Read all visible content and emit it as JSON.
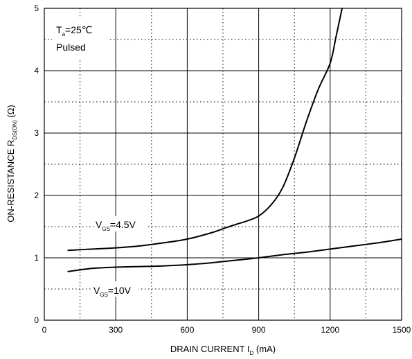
{
  "chart_data": {
    "type": "line",
    "xlabel": {
      "main": "DRAIN CURRENT I",
      "sub": "D",
      "unit": " (mA)"
    },
    "ylabel": {
      "main": "ON-RESISTANCE    R",
      "sub": "DS(ON)",
      "unit": "    (Ω)"
    },
    "xlim": [
      0,
      1500
    ],
    "ylim": [
      0,
      5
    ],
    "xticks": [
      0,
      300,
      600,
      900,
      1200,
      1500
    ],
    "yticks": [
      0,
      1,
      2,
      3,
      4,
      5
    ],
    "grid": {
      "major": "solid",
      "minor": "dotted"
    },
    "conditions": {
      "ta": {
        "main": "T",
        "sub": "a",
        "rest": "=25℃"
      },
      "mode": "Pulsed"
    },
    "series": [
      {
        "label": {
          "main": "V",
          "sub": "GS",
          "rest": "=4.5V"
        },
        "x": [
          100,
          200,
          300,
          400,
          500,
          600,
          700,
          760,
          800,
          850,
          900,
          950,
          1000,
          1050,
          1100,
          1150,
          1200,
          1225,
          1250
        ],
        "y": [
          1.12,
          1.14,
          1.16,
          1.19,
          1.24,
          1.3,
          1.4,
          1.48,
          1.53,
          1.59,
          1.67,
          1.84,
          2.12,
          2.6,
          3.18,
          3.7,
          4.12,
          4.55,
          5.0
        ]
      },
      {
        "label": {
          "main": "V",
          "sub": "GS",
          "rest": "=10V"
        },
        "x": [
          100,
          200,
          300,
          400,
          500,
          600,
          700,
          800,
          900,
          1000,
          1100,
          1200,
          1300,
          1400,
          1500
        ],
        "y": [
          0.78,
          0.83,
          0.85,
          0.86,
          0.87,
          0.89,
          0.92,
          0.96,
          1.0,
          1.05,
          1.09,
          1.14,
          1.19,
          1.24,
          1.3
        ]
      }
    ]
  }
}
